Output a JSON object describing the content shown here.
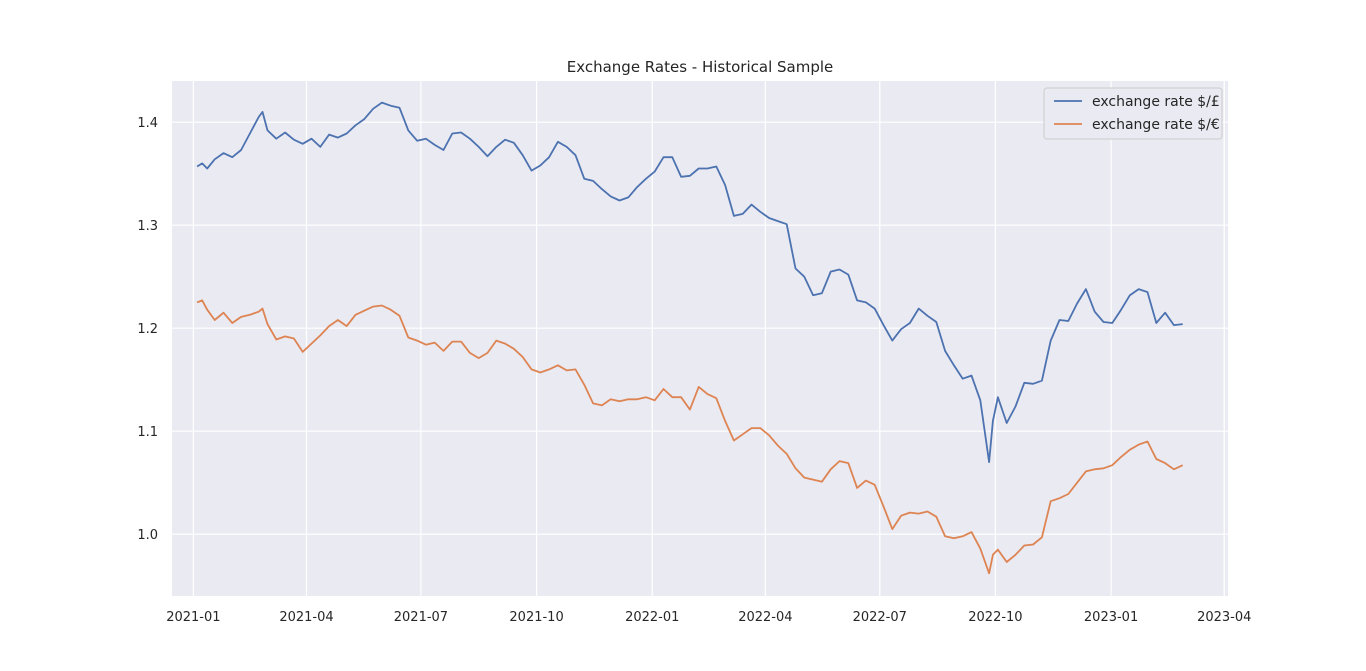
{
  "chart_data": {
    "type": "line",
    "title": "Exchange Rates - Historical Sample",
    "xlabel": "",
    "ylabel": "",
    "x_axis": {
      "type": "date",
      "range": [
        "2020-12-15",
        "2023-04-04"
      ],
      "ticks": [
        "2021-01-01",
        "2021-04-01",
        "2021-07-01",
        "2021-10-01",
        "2022-01-01",
        "2022-04-01",
        "2022-07-01",
        "2022-10-01",
        "2023-01-01",
        "2023-04-01"
      ],
      "tick_labels": [
        "2021-01",
        "2021-04",
        "2021-07",
        "2021-10",
        "2022-01",
        "2022-04",
        "2022-07",
        "2022-10",
        "2023-01",
        "2023-04"
      ]
    },
    "y_axis": {
      "range": [
        0.94,
        1.44
      ],
      "ticks": [
        1.0,
        1.1,
        1.2,
        1.3,
        1.4
      ],
      "tick_labels": [
        "1.0",
        "1.1",
        "1.2",
        "1.3",
        "1.4"
      ]
    },
    "grid": true,
    "background": "#eaeaf2",
    "legend": {
      "position": "top-right"
    },
    "series": [
      {
        "name": "exchange rate $/£",
        "color": "#4c72b0",
        "points": [
          [
            "2021-01-04",
            1.357
          ],
          [
            "2021-01-08",
            1.36
          ],
          [
            "2021-01-12",
            1.355
          ],
          [
            "2021-01-18",
            1.364
          ],
          [
            "2021-01-25",
            1.37
          ],
          [
            "2021-02-01",
            1.366
          ],
          [
            "2021-02-08",
            1.373
          ],
          [
            "2021-02-15",
            1.389
          ],
          [
            "2021-02-22",
            1.405
          ],
          [
            "2021-02-25",
            1.41
          ],
          [
            "2021-03-01",
            1.392
          ],
          [
            "2021-03-08",
            1.384
          ],
          [
            "2021-03-15",
            1.39
          ],
          [
            "2021-03-22",
            1.383
          ],
          [
            "2021-03-29",
            1.379
          ],
          [
            "2021-04-05",
            1.384
          ],
          [
            "2021-04-12",
            1.376
          ],
          [
            "2021-04-19",
            1.388
          ],
          [
            "2021-04-26",
            1.385
          ],
          [
            "2021-05-03",
            1.389
          ],
          [
            "2021-05-10",
            1.397
          ],
          [
            "2021-05-17",
            1.403
          ],
          [
            "2021-05-24",
            1.413
          ],
          [
            "2021-05-31",
            1.419
          ],
          [
            "2021-06-07",
            1.416
          ],
          [
            "2021-06-14",
            1.414
          ],
          [
            "2021-06-21",
            1.392
          ],
          [
            "2021-06-28",
            1.382
          ],
          [
            "2021-07-05",
            1.384
          ],
          [
            "2021-07-12",
            1.378
          ],
          [
            "2021-07-19",
            1.373
          ],
          [
            "2021-07-26",
            1.389
          ],
          [
            "2021-08-02",
            1.39
          ],
          [
            "2021-08-09",
            1.384
          ],
          [
            "2021-08-16",
            1.376
          ],
          [
            "2021-08-23",
            1.367
          ],
          [
            "2021-08-30",
            1.376
          ],
          [
            "2021-09-06",
            1.383
          ],
          [
            "2021-09-13",
            1.38
          ],
          [
            "2021-09-20",
            1.368
          ],
          [
            "2021-09-27",
            1.353
          ],
          [
            "2021-10-04",
            1.358
          ],
          [
            "2021-10-11",
            1.366
          ],
          [
            "2021-10-18",
            1.381
          ],
          [
            "2021-10-25",
            1.376
          ],
          [
            "2021-11-01",
            1.368
          ],
          [
            "2021-11-08",
            1.345
          ],
          [
            "2021-11-15",
            1.343
          ],
          [
            "2021-11-22",
            1.335
          ],
          [
            "2021-11-29",
            1.328
          ],
          [
            "2021-12-06",
            1.324
          ],
          [
            "2021-12-13",
            1.327
          ],
          [
            "2021-12-20",
            1.337
          ],
          [
            "2021-12-27",
            1.345
          ],
          [
            "2022-01-03",
            1.352
          ],
          [
            "2022-01-10",
            1.366
          ],
          [
            "2022-01-17",
            1.366
          ],
          [
            "2022-01-24",
            1.347
          ],
          [
            "2022-01-31",
            1.348
          ],
          [
            "2022-02-07",
            1.355
          ],
          [
            "2022-02-14",
            1.355
          ],
          [
            "2022-02-21",
            1.357
          ],
          [
            "2022-02-28",
            1.339
          ],
          [
            "2022-03-07",
            1.309
          ],
          [
            "2022-03-14",
            1.311
          ],
          [
            "2022-03-21",
            1.32
          ],
          [
            "2022-03-28",
            1.313
          ],
          [
            "2022-04-04",
            1.307
          ],
          [
            "2022-04-11",
            1.304
          ],
          [
            "2022-04-18",
            1.301
          ],
          [
            "2022-04-25",
            1.258
          ],
          [
            "2022-05-02",
            1.25
          ],
          [
            "2022-05-09",
            1.232
          ],
          [
            "2022-05-16",
            1.234
          ],
          [
            "2022-05-23",
            1.255
          ],
          [
            "2022-05-30",
            1.257
          ],
          [
            "2022-06-06",
            1.252
          ],
          [
            "2022-06-13",
            1.227
          ],
          [
            "2022-06-20",
            1.225
          ],
          [
            "2022-06-27",
            1.219
          ],
          [
            "2022-07-04",
            1.203
          ],
          [
            "2022-07-11",
            1.188
          ],
          [
            "2022-07-18",
            1.199
          ],
          [
            "2022-07-25",
            1.205
          ],
          [
            "2022-08-01",
            1.219
          ],
          [
            "2022-08-08",
            1.212
          ],
          [
            "2022-08-15",
            1.206
          ],
          [
            "2022-08-22",
            1.178
          ],
          [
            "2022-08-29",
            1.164
          ],
          [
            "2022-09-05",
            1.151
          ],
          [
            "2022-09-12",
            1.154
          ],
          [
            "2022-09-19",
            1.13
          ],
          [
            "2022-09-26",
            1.07
          ],
          [
            "2022-09-29",
            1.11
          ],
          [
            "2022-10-03",
            1.133
          ],
          [
            "2022-10-10",
            1.108
          ],
          [
            "2022-10-17",
            1.124
          ],
          [
            "2022-10-24",
            1.147
          ],
          [
            "2022-10-31",
            1.146
          ],
          [
            "2022-11-07",
            1.149
          ],
          [
            "2022-11-14",
            1.188
          ],
          [
            "2022-11-21",
            1.208
          ],
          [
            "2022-11-28",
            1.207
          ],
          [
            "2022-12-05",
            1.224
          ],
          [
            "2022-12-12",
            1.238
          ],
          [
            "2022-12-19",
            1.216
          ],
          [
            "2022-12-26",
            1.206
          ],
          [
            "2023-01-02",
            1.205
          ],
          [
            "2023-01-09",
            1.218
          ],
          [
            "2023-01-16",
            1.232
          ],
          [
            "2023-01-23",
            1.238
          ],
          [
            "2023-01-30",
            1.235
          ],
          [
            "2023-02-06",
            1.205
          ],
          [
            "2023-02-13",
            1.215
          ],
          [
            "2023-02-20",
            1.203
          ],
          [
            "2023-02-27",
            1.204
          ]
        ]
      },
      {
        "name": "exchange rate $/€",
        "color": "#dd8452",
        "points": [
          [
            "2021-01-04",
            1.225
          ],
          [
            "2021-01-08",
            1.227
          ],
          [
            "2021-01-12",
            1.218
          ],
          [
            "2021-01-18",
            1.208
          ],
          [
            "2021-01-25",
            1.215
          ],
          [
            "2021-02-01",
            1.205
          ],
          [
            "2021-02-08",
            1.211
          ],
          [
            "2021-02-15",
            1.213
          ],
          [
            "2021-02-22",
            1.216
          ],
          [
            "2021-02-25",
            1.219
          ],
          [
            "2021-03-01",
            1.204
          ],
          [
            "2021-03-08",
            1.189
          ],
          [
            "2021-03-15",
            1.192
          ],
          [
            "2021-03-22",
            1.19
          ],
          [
            "2021-03-29",
            1.177
          ],
          [
            "2021-04-05",
            1.185
          ],
          [
            "2021-04-12",
            1.193
          ],
          [
            "2021-04-19",
            1.202
          ],
          [
            "2021-04-26",
            1.208
          ],
          [
            "2021-05-03",
            1.202
          ],
          [
            "2021-05-10",
            1.213
          ],
          [
            "2021-05-17",
            1.217
          ],
          [
            "2021-05-24",
            1.221
          ],
          [
            "2021-05-31",
            1.222
          ],
          [
            "2021-06-07",
            1.218
          ],
          [
            "2021-06-14",
            1.212
          ],
          [
            "2021-06-21",
            1.191
          ],
          [
            "2021-06-28",
            1.188
          ],
          [
            "2021-07-05",
            1.184
          ],
          [
            "2021-07-12",
            1.186
          ],
          [
            "2021-07-19",
            1.178
          ],
          [
            "2021-07-26",
            1.187
          ],
          [
            "2021-08-02",
            1.187
          ],
          [
            "2021-08-09",
            1.176
          ],
          [
            "2021-08-16",
            1.171
          ],
          [
            "2021-08-23",
            1.176
          ],
          [
            "2021-08-30",
            1.188
          ],
          [
            "2021-09-06",
            1.185
          ],
          [
            "2021-09-13",
            1.18
          ],
          [
            "2021-09-20",
            1.172
          ],
          [
            "2021-09-27",
            1.16
          ],
          [
            "2021-10-04",
            1.157
          ],
          [
            "2021-10-11",
            1.16
          ],
          [
            "2021-10-18",
            1.164
          ],
          [
            "2021-10-25",
            1.159
          ],
          [
            "2021-11-01",
            1.16
          ],
          [
            "2021-11-08",
            1.145
          ],
          [
            "2021-11-15",
            1.127
          ],
          [
            "2021-11-22",
            1.125
          ],
          [
            "2021-11-29",
            1.131
          ],
          [
            "2021-12-06",
            1.129
          ],
          [
            "2021-12-13",
            1.131
          ],
          [
            "2021-12-20",
            1.131
          ],
          [
            "2021-12-27",
            1.133
          ],
          [
            "2022-01-03",
            1.13
          ],
          [
            "2022-01-10",
            1.141
          ],
          [
            "2022-01-17",
            1.133
          ],
          [
            "2022-01-24",
            1.133
          ],
          [
            "2022-01-31",
            1.121
          ],
          [
            "2022-02-07",
            1.143
          ],
          [
            "2022-02-14",
            1.136
          ],
          [
            "2022-02-21",
            1.132
          ],
          [
            "2022-02-28",
            1.11
          ],
          [
            "2022-03-07",
            1.091
          ],
          [
            "2022-03-14",
            1.097
          ],
          [
            "2022-03-21",
            1.103
          ],
          [
            "2022-03-28",
            1.103
          ],
          [
            "2022-04-04",
            1.096
          ],
          [
            "2022-04-11",
            1.086
          ],
          [
            "2022-04-18",
            1.078
          ],
          [
            "2022-04-25",
            1.064
          ],
          [
            "2022-05-02",
            1.055
          ],
          [
            "2022-05-09",
            1.053
          ],
          [
            "2022-05-16",
            1.051
          ],
          [
            "2022-05-23",
            1.063
          ],
          [
            "2022-05-30",
            1.071
          ],
          [
            "2022-06-06",
            1.069
          ],
          [
            "2022-06-13",
            1.045
          ],
          [
            "2022-06-20",
            1.052
          ],
          [
            "2022-06-27",
            1.048
          ],
          [
            "2022-07-04",
            1.027
          ],
          [
            "2022-07-11",
            1.005
          ],
          [
            "2022-07-18",
            1.018
          ],
          [
            "2022-07-25",
            1.021
          ],
          [
            "2022-08-01",
            1.02
          ],
          [
            "2022-08-08",
            1.022
          ],
          [
            "2022-08-15",
            1.017
          ],
          [
            "2022-08-22",
            0.998
          ],
          [
            "2022-08-29",
            0.996
          ],
          [
            "2022-09-05",
            0.998
          ],
          [
            "2022-09-12",
            1.002
          ],
          [
            "2022-09-19",
            0.986
          ],
          [
            "2022-09-26",
            0.962
          ],
          [
            "2022-09-29",
            0.98
          ],
          [
            "2022-10-03",
            0.985
          ],
          [
            "2022-10-10",
            0.973
          ],
          [
            "2022-10-17",
            0.98
          ],
          [
            "2022-10-24",
            0.989
          ],
          [
            "2022-10-31",
            0.99
          ],
          [
            "2022-11-07",
            0.997
          ],
          [
            "2022-11-14",
            1.032
          ],
          [
            "2022-11-21",
            1.035
          ],
          [
            "2022-11-28",
            1.039
          ],
          [
            "2022-12-05",
            1.05
          ],
          [
            "2022-12-12",
            1.061
          ],
          [
            "2022-12-19",
            1.063
          ],
          [
            "2022-12-26",
            1.064
          ],
          [
            "2023-01-02",
            1.067
          ],
          [
            "2023-01-09",
            1.075
          ],
          [
            "2023-01-16",
            1.082
          ],
          [
            "2023-01-23",
            1.087
          ],
          [
            "2023-01-30",
            1.09
          ],
          [
            "2023-02-06",
            1.073
          ],
          [
            "2023-02-13",
            1.069
          ],
          [
            "2023-02-20",
            1.063
          ],
          [
            "2023-02-27",
            1.067
          ]
        ]
      }
    ]
  }
}
